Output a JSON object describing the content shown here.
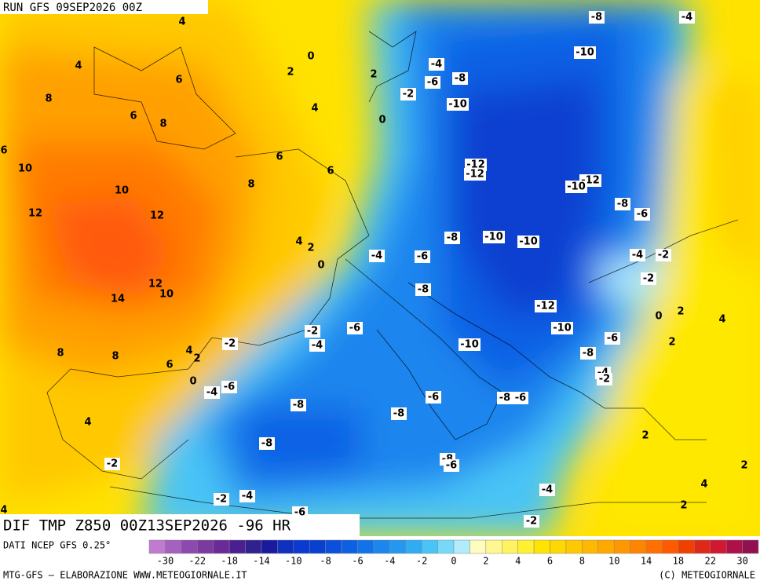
{
  "header": {
    "run": "RUN GFS 09SEP2026 00Z",
    "title": "DIF TMP Z850 00Z13SEP2026 -96 HR"
  },
  "map": {
    "contour_labels": [
      4,
      4,
      6,
      0,
      2,
      8,
      6,
      8,
      4,
      2,
      0,
      6,
      6,
      6,
      10,
      8,
      10,
      12,
      12,
      4,
      2,
      0,
      12,
      10,
      14,
      8,
      8,
      6,
      4,
      2,
      0,
      -4,
      -6,
      4,
      -2,
      4,
      -2,
      -4,
      -6,
      -8,
      -4,
      -10,
      -4,
      -8,
      -6,
      -2,
      -10,
      -12,
      -12,
      -12,
      -10,
      -8,
      -6,
      -8,
      -10,
      -10,
      -4,
      -6,
      -4,
      -2,
      -2,
      -8,
      -12,
      2,
      0,
      4,
      -10,
      -2,
      -6,
      -4,
      -2,
      -10,
      -6,
      2,
      -8,
      -4,
      -2,
      -8,
      -8,
      -6,
      -8,
      -6,
      2,
      -8,
      -8,
      -6,
      2,
      -4,
      4,
      2,
      -2
    ]
  },
  "legend": {
    "source": "DATI NCEP GFS 0.25°",
    "ticks": [
      -30,
      -22,
      -18,
      -14,
      -10,
      -8,
      -6,
      -4,
      -2,
      0,
      2,
      4,
      6,
      8,
      10,
      14,
      18,
      22,
      30
    ],
    "colors": [
      "#c07ad0",
      "#a560c0",
      "#8c4ab0",
      "#7a3aa0",
      "#6a2a98",
      "#4a2090",
      "#302090",
      "#1a1aa0",
      "#1030c0",
      "#0a3ad0",
      "#0840d0",
      "#0a50dc",
      "#0c60e4",
      "#1272ea",
      "#1a86ee",
      "#2498f0",
      "#30acf2",
      "#48c4f6",
      "#78d8f8",
      "#b0ecfc",
      "#fffcc0",
      "#fff890",
      "#fff460",
      "#fff030",
      "#ffe400",
      "#ffd800",
      "#ffc800",
      "#ffb800",
      "#ffa800",
      "#ff9800",
      "#ff8400",
      "#ff7000",
      "#ff5a00",
      "#f04000",
      "#e02818",
      "#d01830",
      "#b01048",
      "#901050"
    ]
  },
  "footer": {
    "credit": "MTG-GFS — ELABORAZIONE WWW.METEOGIORNALE.IT",
    "copyright": "(C) METEOGIORNALE"
  }
}
